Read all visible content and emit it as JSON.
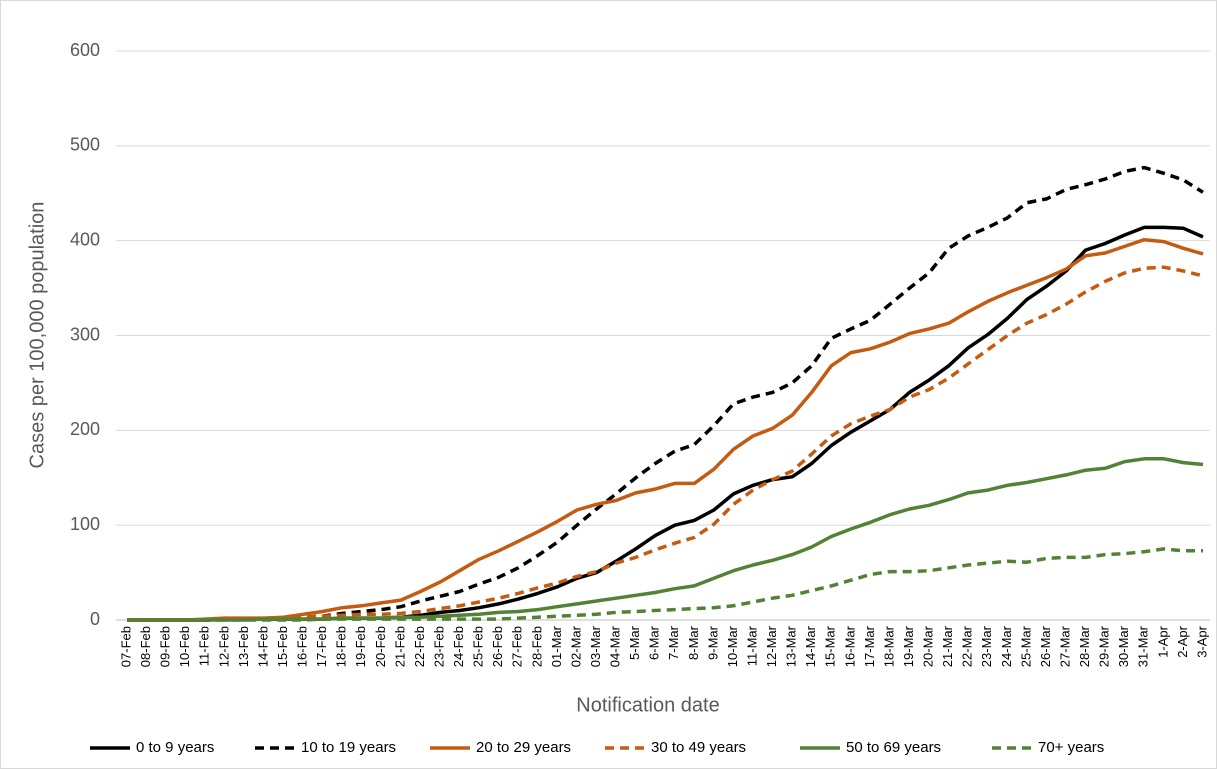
{
  "chart_data": {
    "type": "line",
    "x_label": "Notification date",
    "y_label": "Cases per 100,000 population",
    "categories": [
      "07-Feb",
      "08-Feb",
      "09-Feb",
      "10-Feb",
      "11-Feb",
      "12-Feb",
      "13-Feb",
      "14-Feb",
      "15-Feb",
      "16-Feb",
      "17-Feb",
      "18-Feb",
      "19-Feb",
      "20-Feb",
      "21-Feb",
      "22-Feb",
      "23-Feb",
      "24-Feb",
      "25-Feb",
      "26-Feb",
      "27-Feb",
      "28-Feb",
      "01-Mar",
      "02-Mar",
      "03-Mar",
      "04-Mar",
      "5-Mar",
      "6-Mar",
      "7-Mar",
      "8-Mar",
      "9-Mar",
      "10-Mar",
      "11-Mar",
      "12-Mar",
      "13-Mar",
      "14-Mar",
      "15-Mar",
      "16-Mar",
      "17-Mar",
      "18-Mar",
      "19-Mar",
      "20-Mar",
      "21-Mar",
      "22-Mar",
      "23-Mar",
      "24-Mar",
      "25-Mar",
      "26-Mar",
      "27-Mar",
      "28-Mar",
      "29-Mar",
      "30-Mar",
      "31-Mar",
      "1-Apr",
      "2-Apr",
      "3-Apr"
    ],
    "series": [
      {
        "name": "0 to 9 years",
        "color": "#000000",
        "dash": false,
        "values": [
          0,
          0,
          0,
          0,
          0,
          1,
          1,
          1,
          1,
          1,
          1,
          2,
          2,
          2,
          3,
          5,
          8,
          10,
          13,
          17,
          22,
          28,
          35,
          44,
          50,
          62,
          75,
          89,
          100,
          105,
          116,
          133,
          142,
          148,
          151,
          165,
          184,
          198,
          210,
          222,
          240,
          253,
          268,
          287,
          301,
          318,
          338,
          352,
          368,
          390,
          397,
          406,
          414,
          414,
          413,
          404
        ]
      },
      {
        "name": "10 to 19 years",
        "color": "#000000",
        "dash": true,
        "values": [
          0,
          0,
          0,
          0,
          0,
          1,
          1,
          1,
          2,
          3,
          4,
          7,
          9,
          11,
          14,
          20,
          25,
          30,
          38,
          45,
          55,
          68,
          82,
          100,
          117,
          133,
          150,
          165,
          178,
          185,
          205,
          228,
          235,
          240,
          250,
          268,
          297,
          307,
          316,
          333,
          350,
          366,
          392,
          405,
          414,
          424,
          440,
          444,
          454,
          459,
          465,
          473,
          477,
          471,
          464,
          451
        ]
      },
      {
        "name": "20 to 29 years",
        "color": "#c55a11",
        "dash": false,
        "values": [
          0,
          0,
          0,
          0,
          1,
          2,
          2,
          2,
          3,
          6,
          9,
          13,
          15,
          18,
          21,
          30,
          40,
          52,
          64,
          73,
          83,
          93,
          104,
          116,
          122,
          126,
          134,
          138,
          144,
          144,
          159,
          180,
          194,
          202,
          216,
          240,
          268,
          282,
          286,
          293,
          302,
          307,
          313,
          325,
          336,
          345,
          353,
          361,
          370,
          384,
          387,
          394,
          401,
          399,
          392,
          386
        ]
      },
      {
        "name": "30 to 49 years",
        "color": "#c55a11",
        "dash": true,
        "values": [
          0,
          0,
          0,
          0,
          0,
          1,
          1,
          1,
          2,
          3,
          4,
          5,
          6,
          6,
          7,
          9,
          12,
          15,
          19,
          23,
          28,
          34,
          39,
          46,
          51,
          60,
          66,
          74,
          81,
          87,
          101,
          122,
          137,
          148,
          157,
          175,
          194,
          207,
          215,
          222,
          235,
          243,
          255,
          270,
          285,
          300,
          313,
          322,
          333,
          346,
          357,
          366,
          371,
          372,
          368,
          363
        ]
      },
      {
        "name": "50 to 69 years",
        "color": "#548235",
        "dash": false,
        "values": [
          0,
          0,
          0,
          0,
          0,
          0,
          0,
          1,
          1,
          1,
          1,
          2,
          2,
          2,
          3,
          3,
          4,
          5,
          6,
          8,
          9,
          11,
          14,
          17,
          20,
          23,
          26,
          29,
          33,
          36,
          44,
          52,
          58,
          63,
          69,
          77,
          88,
          96,
          103,
          111,
          117,
          121,
          127,
          134,
          137,
          142,
          145,
          149,
          153,
          158,
          160,
          167,
          170,
          170,
          166,
          164
        ]
      },
      {
        "name": "70+ years",
        "color": "#548235",
        "dash": true,
        "values": [
          0,
          0,
          0,
          0,
          0,
          0,
          0,
          0,
          0,
          0,
          1,
          1,
          1,
          1,
          1,
          1,
          1,
          1,
          1,
          1,
          2,
          3,
          4,
          5,
          6,
          8,
          9,
          10,
          11,
          12,
          13,
          15,
          19,
          23,
          26,
          31,
          36,
          42,
          48,
          51,
          51,
          52,
          55,
          58,
          60,
          62,
          61,
          65,
          66,
          66,
          69,
          70,
          72,
          75,
          73,
          73
        ]
      }
    ],
    "ylim": [
      0,
      600
    ],
    "yticks": [
      0,
      100,
      200,
      300,
      400,
      500,
      600
    ],
    "grid": true,
    "legend": "bottom"
  }
}
